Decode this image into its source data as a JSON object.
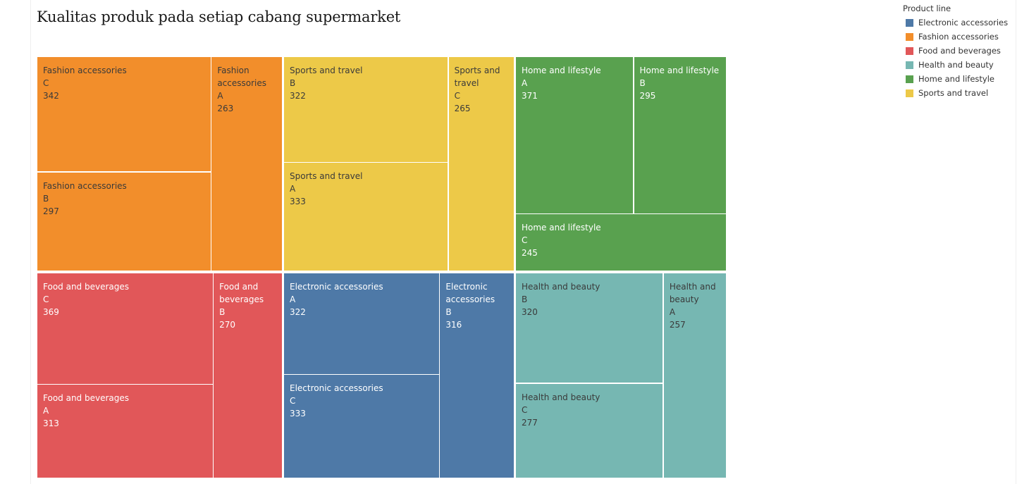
{
  "chart_data": {
    "type": "treemap",
    "title": "Kualitas produk pada setiap cabang supermarket",
    "legend": {
      "title": "Product line",
      "placement": "top-right",
      "entries": [
        {
          "label": "Electronic accessories",
          "color": "#4e79a7"
        },
        {
          "label": "Fashion accessories",
          "color": "#f28e2b"
        },
        {
          "label": "Food and beverages",
          "color": "#e15759"
        },
        {
          "label": "Health and beauty",
          "color": "#76b7b2"
        },
        {
          "label": "Home and lifestyle",
          "color": "#59a14f"
        },
        {
          "label": "Sports and travel",
          "color": "#edc948"
        }
      ]
    },
    "groups": [
      {
        "name": "Fashion accessories",
        "color": "#f28e2b",
        "text_color": "#3a3a3a",
        "items": [
          {
            "branch": "C",
            "value": 342
          },
          {
            "branch": "B",
            "value": 297
          },
          {
            "branch": "A",
            "value": 263
          }
        ]
      },
      {
        "name": "Sports and travel",
        "color": "#edc948",
        "text_color": "#3a3a3a",
        "items": [
          {
            "branch": "B",
            "value": 322
          },
          {
            "branch": "A",
            "value": 333
          },
          {
            "branch": "C",
            "value": 265
          }
        ]
      },
      {
        "name": "Home and lifestyle",
        "color": "#59a14f",
        "text_color": "#ffffff",
        "items": [
          {
            "branch": "A",
            "value": 371
          },
          {
            "branch": "B",
            "value": 295
          },
          {
            "branch": "C",
            "value": 245
          }
        ]
      },
      {
        "name": "Food and beverages",
        "color": "#e15759",
        "text_color": "#ffffff",
        "items": [
          {
            "branch": "C",
            "value": 369
          },
          {
            "branch": "A",
            "value": 313
          },
          {
            "branch": "B",
            "value": 270
          }
        ]
      },
      {
        "name": "Electronic accessories",
        "color": "#4e79a7",
        "text_color": "#ffffff",
        "items": [
          {
            "branch": "A",
            "value": 322
          },
          {
            "branch": "C",
            "value": 333
          },
          {
            "branch": "B",
            "value": 316
          }
        ]
      },
      {
        "name": "Health and beauty",
        "color": "#76b7b2",
        "text_color": "#3a3a3a",
        "items": [
          {
            "branch": "B",
            "value": 320
          },
          {
            "branch": "C",
            "value": 277
          },
          {
            "branch": "A",
            "value": 257
          }
        ]
      }
    ]
  }
}
